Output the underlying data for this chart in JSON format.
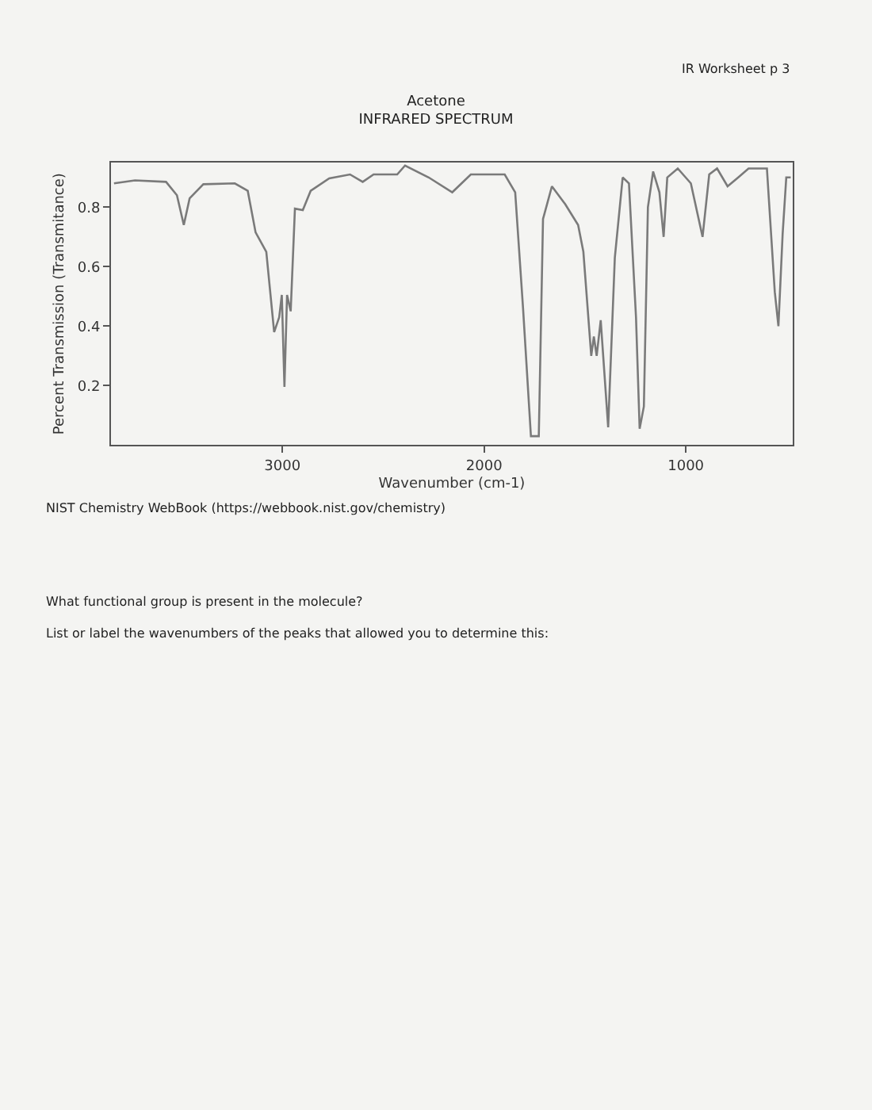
{
  "chart_data": {
    "type": "line",
    "title": "Acetone",
    "subtitle": "INFRARED SPECTRUM",
    "xlabel": "Wavenumber (cm-1)",
    "ylabel": "Percent Transmission (Transmitance)",
    "annotations": [
      "IR Worksheet p 3",
      "NIST Chemistry WebBook (https://webbook.nist.gov/chemistry)",
      "What functional group is present in the molecule?",
      "List or label the wavenumbers of the peaks that allowed you to determine this:"
    ],
    "series": [
      {
        "color": "#7a7a7a",
        "x": [
          3835,
          3731,
          3577,
          3523,
          3489,
          3460,
          3392,
          3236,
          3172,
          3133,
          3080,
          3041,
          3016,
          3003,
          2990,
          2977,
          2959,
          2938,
          2899,
          2860,
          2768,
          2665,
          2602,
          2548,
          2431,
          2392,
          2275,
          2158,
          2066,
          1898,
          1846,
          1807,
          1768,
          1729,
          1708,
          1664,
          1598,
          1534,
          1508,
          1469,
          1456,
          1442,
          1422,
          1385,
          1352,
          1313,
          1282,
          1247,
          1229,
          1208,
          1188,
          1162,
          1131,
          1110,
          1092,
          1040,
          975,
          917,
          884,
          845,
          793,
          740,
          689,
          598,
          559,
          541,
          520,
          502,
          480
        ],
        "values": [
          0.88,
          0.89,
          0.885,
          0.84,
          0.74,
          0.83,
          0.877,
          0.88,
          0.855,
          0.715,
          0.65,
          0.38,
          0.43,
          0.505,
          0.196,
          0.505,
          0.45,
          0.795,
          0.79,
          0.855,
          0.897,
          0.91,
          0.885,
          0.91,
          0.91,
          0.94,
          0.9,
          0.85,
          0.91,
          0.91,
          0.85,
          0.46,
          0.03,
          0.03,
          0.76,
          0.87,
          0.81,
          0.74,
          0.65,
          0.3,
          0.365,
          0.3,
          0.42,
          0.06,
          0.63,
          0.9,
          0.88,
          0.43,
          0.055,
          0.13,
          0.8,
          0.92,
          0.85,
          0.7,
          0.9,
          0.93,
          0.88,
          0.7,
          0.91,
          0.93,
          0.87,
          0.9,
          0.93,
          0.93,
          0.515,
          0.4,
          0.71,
          0.9,
          0.9
        ]
      }
    ],
    "xlim": [
      3850,
      470
    ],
    "xticks": [
      3000,
      2000,
      1000
    ],
    "ylim": [
      0,
      0.95
    ],
    "yticks": [
      0.2,
      0.4,
      0.6,
      0.8
    ],
    "grid": false,
    "marker": "none",
    "line_style": "solid"
  }
}
